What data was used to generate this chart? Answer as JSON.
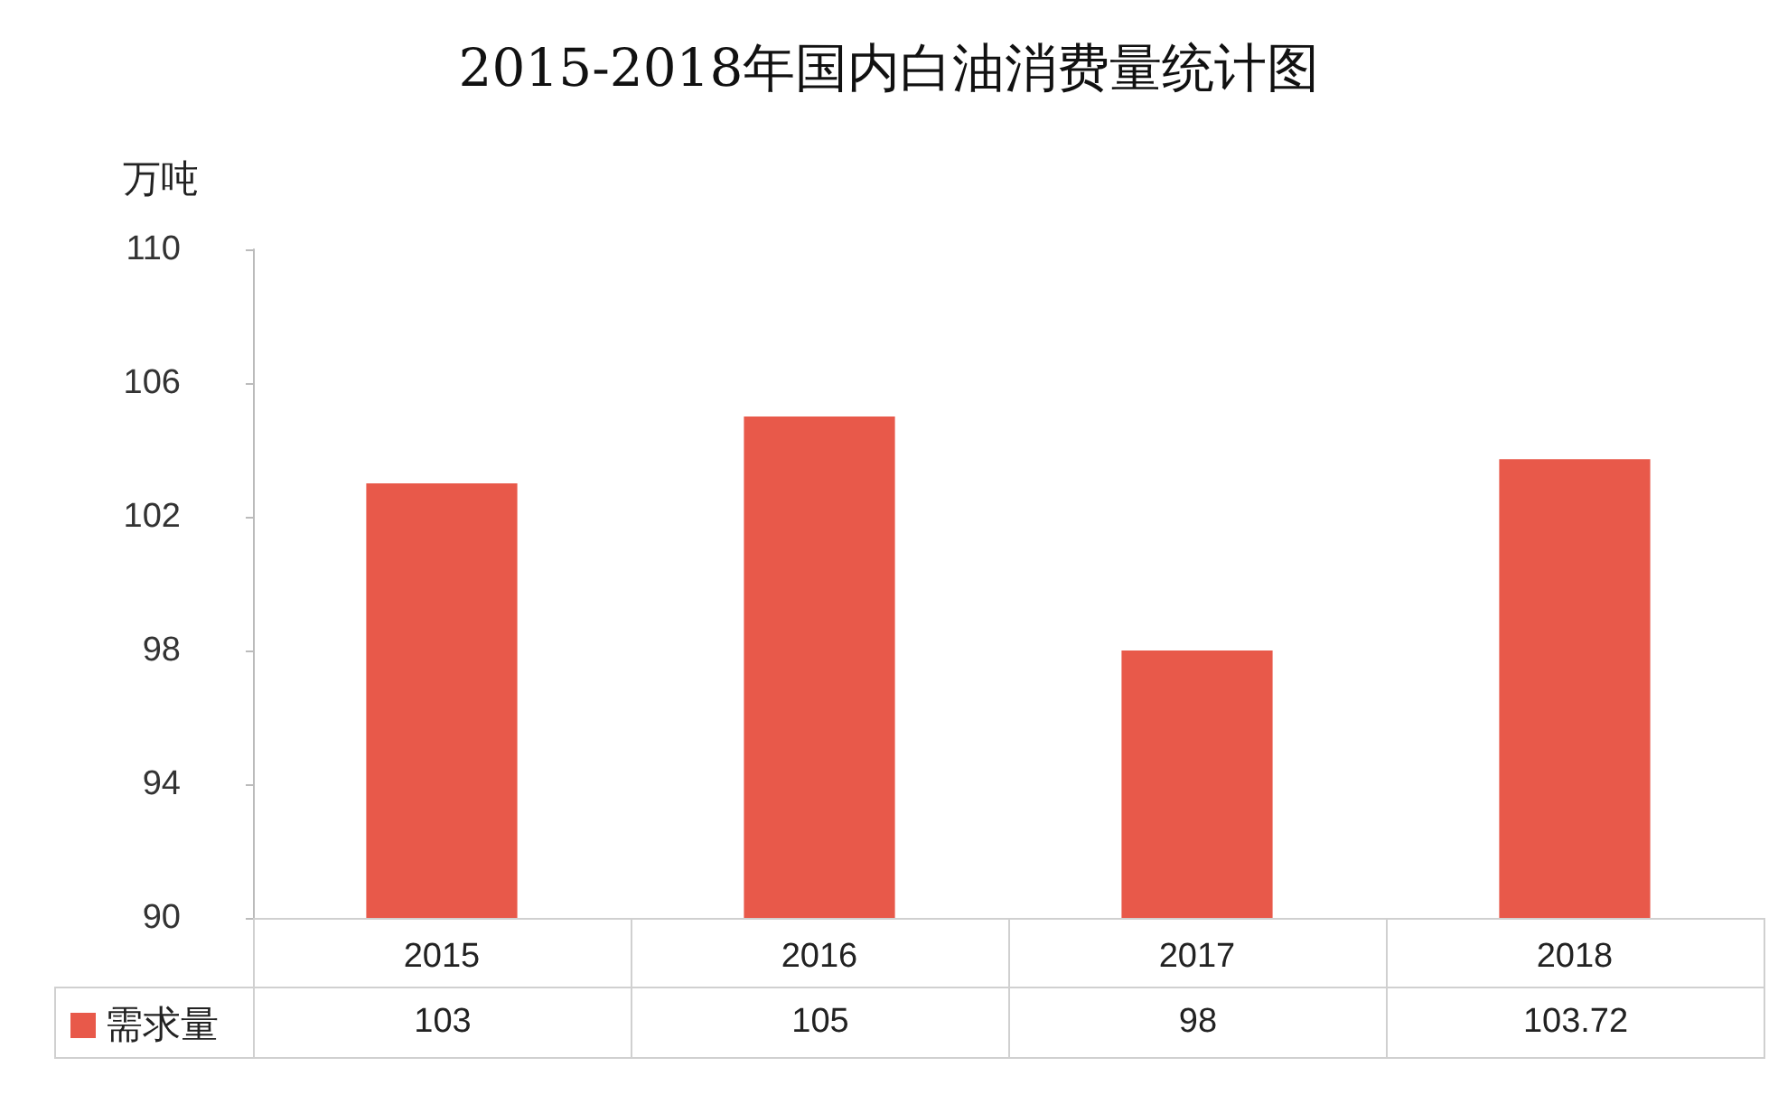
{
  "chart_data": {
    "type": "bar",
    "title": "2015-2018年国内白油消费量统计图",
    "ylabel": "万吨",
    "categories": [
      "2015",
      "2016",
      "2017",
      "2018"
    ],
    "series": [
      {
        "name": "需求量",
        "color": "#e8594a",
        "values": [
          103,
          105,
          98,
          103.72
        ]
      }
    ],
    "ylim": [
      90,
      110
    ],
    "yticks": [
      90,
      94,
      98,
      102,
      106,
      110
    ],
    "grid": false,
    "legend": "bottom left",
    "data_labels": true
  }
}
